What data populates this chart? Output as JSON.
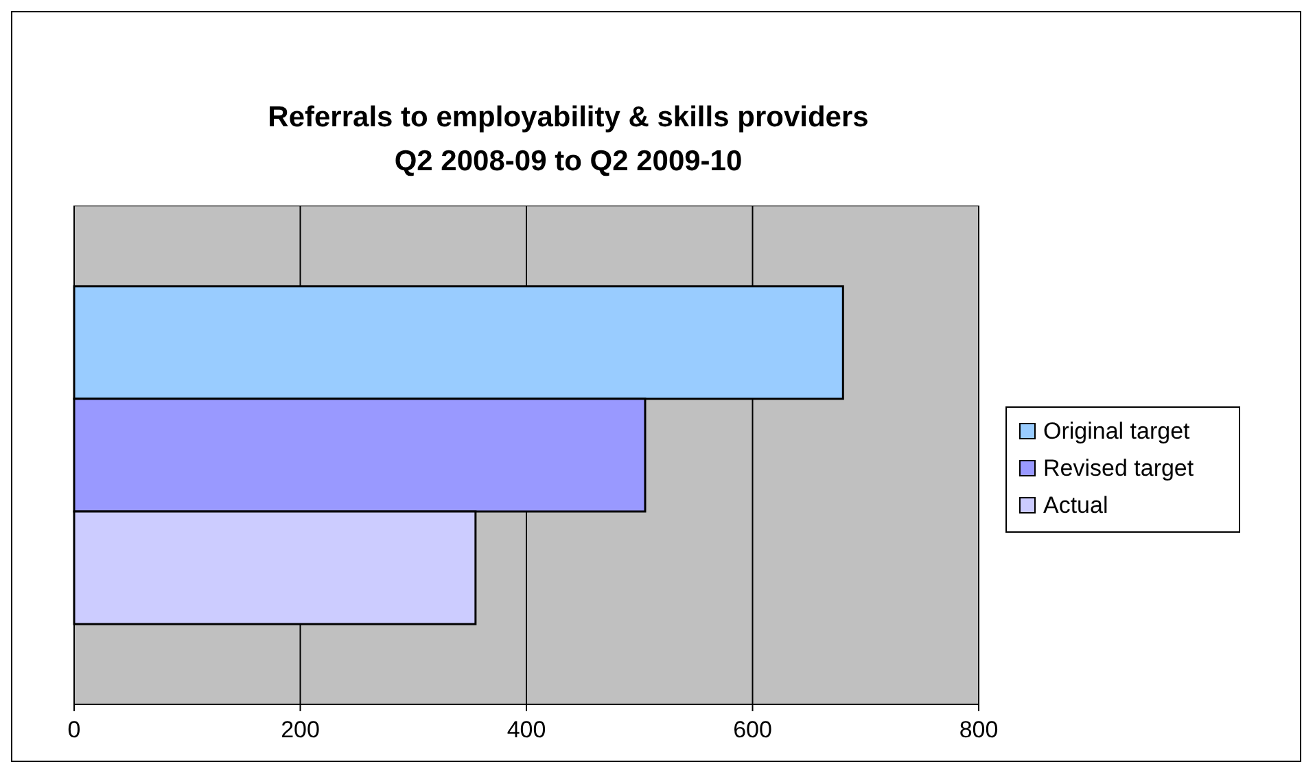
{
  "chart_data": {
    "type": "bar",
    "orientation": "horizontal",
    "title": "Referrals to employability & skills providers\nQ2 2008-09 to Q2 2009-10",
    "categories": [
      null
    ],
    "series": [
      {
        "name": "Original target",
        "color": "#99ccff",
        "values": [
          680
        ]
      },
      {
        "name": "Revised target",
        "color": "#9999ff",
        "values": [
          505
        ]
      },
      {
        "name": "Actual",
        "color": "#ccccff",
        "values": [
          355
        ]
      }
    ],
    "xlim": [
      0,
      800
    ],
    "xticks": [
      0,
      200,
      400,
      600,
      800
    ],
    "grid": "x",
    "legend": "right"
  }
}
